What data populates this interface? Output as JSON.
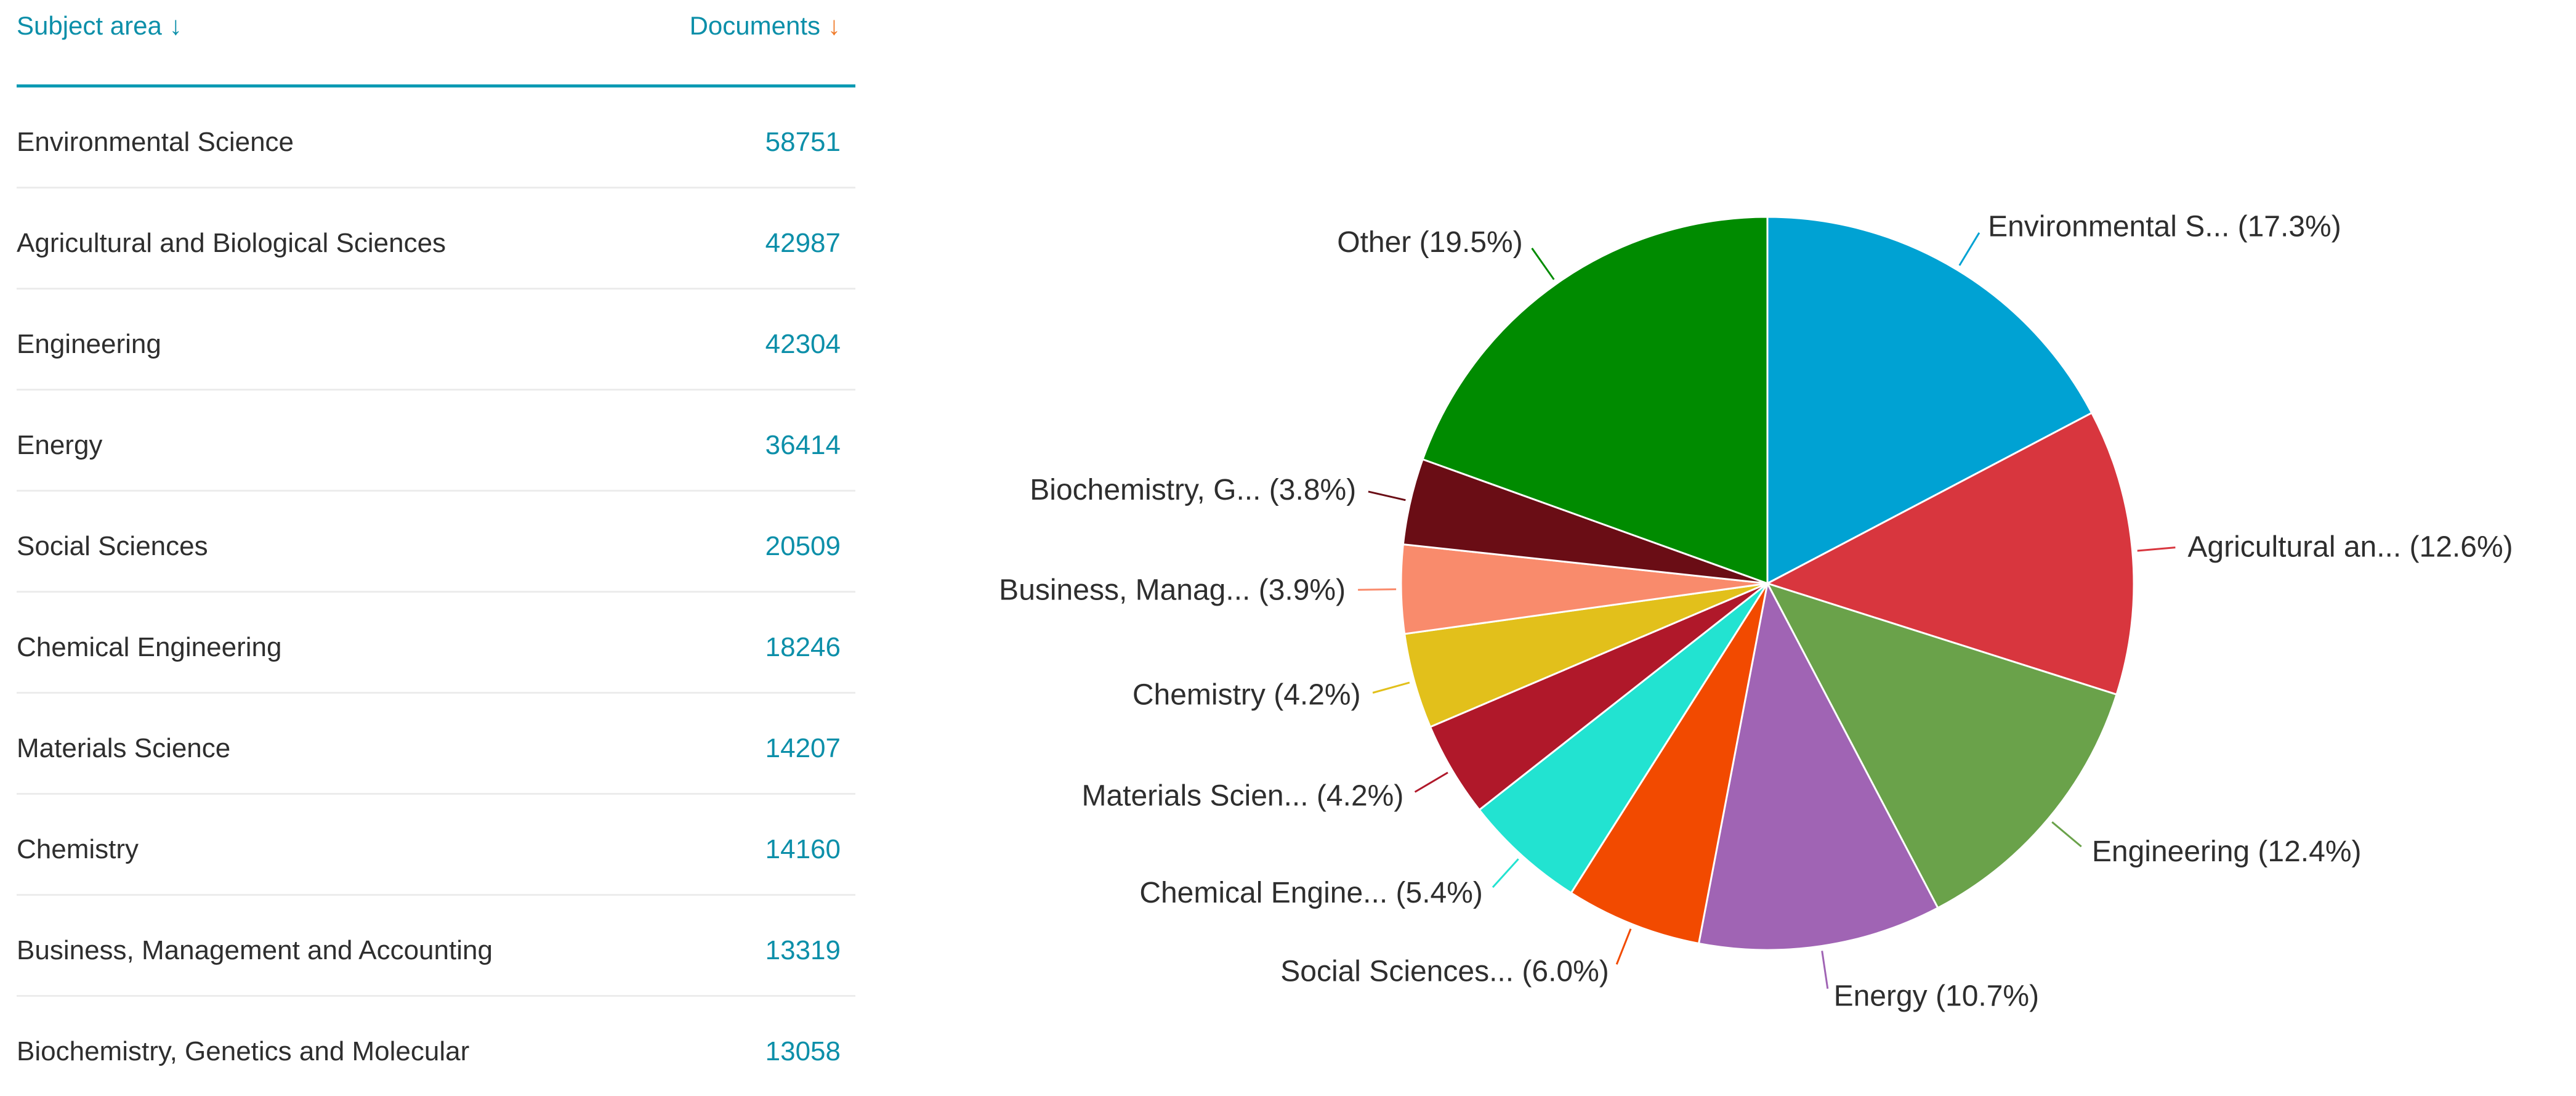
{
  "table": {
    "header_subject": "Subject area",
    "header_documents": "Documents",
    "rows": [
      {
        "subject": "Environmental Science",
        "documents": "58751"
      },
      {
        "subject": "Agricultural and Biological Sciences",
        "documents": "42987"
      },
      {
        "subject": "Engineering",
        "documents": "42304"
      },
      {
        "subject": "Energy",
        "documents": "36414"
      },
      {
        "subject": "Social Sciences",
        "documents": "20509"
      },
      {
        "subject": "Chemical Engineering",
        "documents": "18246"
      },
      {
        "subject": "Materials Science",
        "documents": "14207"
      },
      {
        "subject": "Chemistry",
        "documents": "14160"
      },
      {
        "subject": "Business, Management and Accounting",
        "documents": "13319"
      },
      {
        "subject": "Biochemistry, Genetics and Molecular",
        "documents": "13058"
      }
    ]
  },
  "icons": {
    "header_subject_sort": "arrow-down-icon",
    "header_documents_sort": "arrow-down-icon"
  },
  "colors": {
    "accent": "#0c8fa9",
    "sort_active": "#f07b2a"
  },
  "chart_data": {
    "type": "pie",
    "title": "",
    "slices": [
      {
        "label": "Environmental S... (17.3%)",
        "value": 17.3,
        "color": "#00a2d3"
      },
      {
        "label": "Agricultural an... (12.6%)",
        "value": 12.6,
        "color": "#d8363e"
      },
      {
        "label": "Engineering (12.4%)",
        "value": 12.4,
        "color": "#6aa24a"
      },
      {
        "label": "Energy (10.7%)",
        "value": 10.7,
        "color": "#a064b4"
      },
      {
        "label": "Social Sciences... (6.0%)",
        "value": 6.0,
        "color": "#f24a00"
      },
      {
        "label": "Chemical Engine... (5.4%)",
        "value": 5.4,
        "color": "#22e3d1"
      },
      {
        "label": "Materials Scien... (4.2%)",
        "value": 4.2,
        "color": "#b0182a"
      },
      {
        "label": "Chemistry (4.2%)",
        "value": 4.2,
        "color": "#e2c01b"
      },
      {
        "label": "Business, Manag... (3.9%)",
        "value": 3.9,
        "color": "#f98b6c"
      },
      {
        "label": "Biochemistry, G... (3.8%)",
        "value": 3.8,
        "color": "#6a0d15"
      },
      {
        "label": "Other (19.5%)",
        "value": 19.5,
        "color": "#008b00"
      }
    ]
  }
}
